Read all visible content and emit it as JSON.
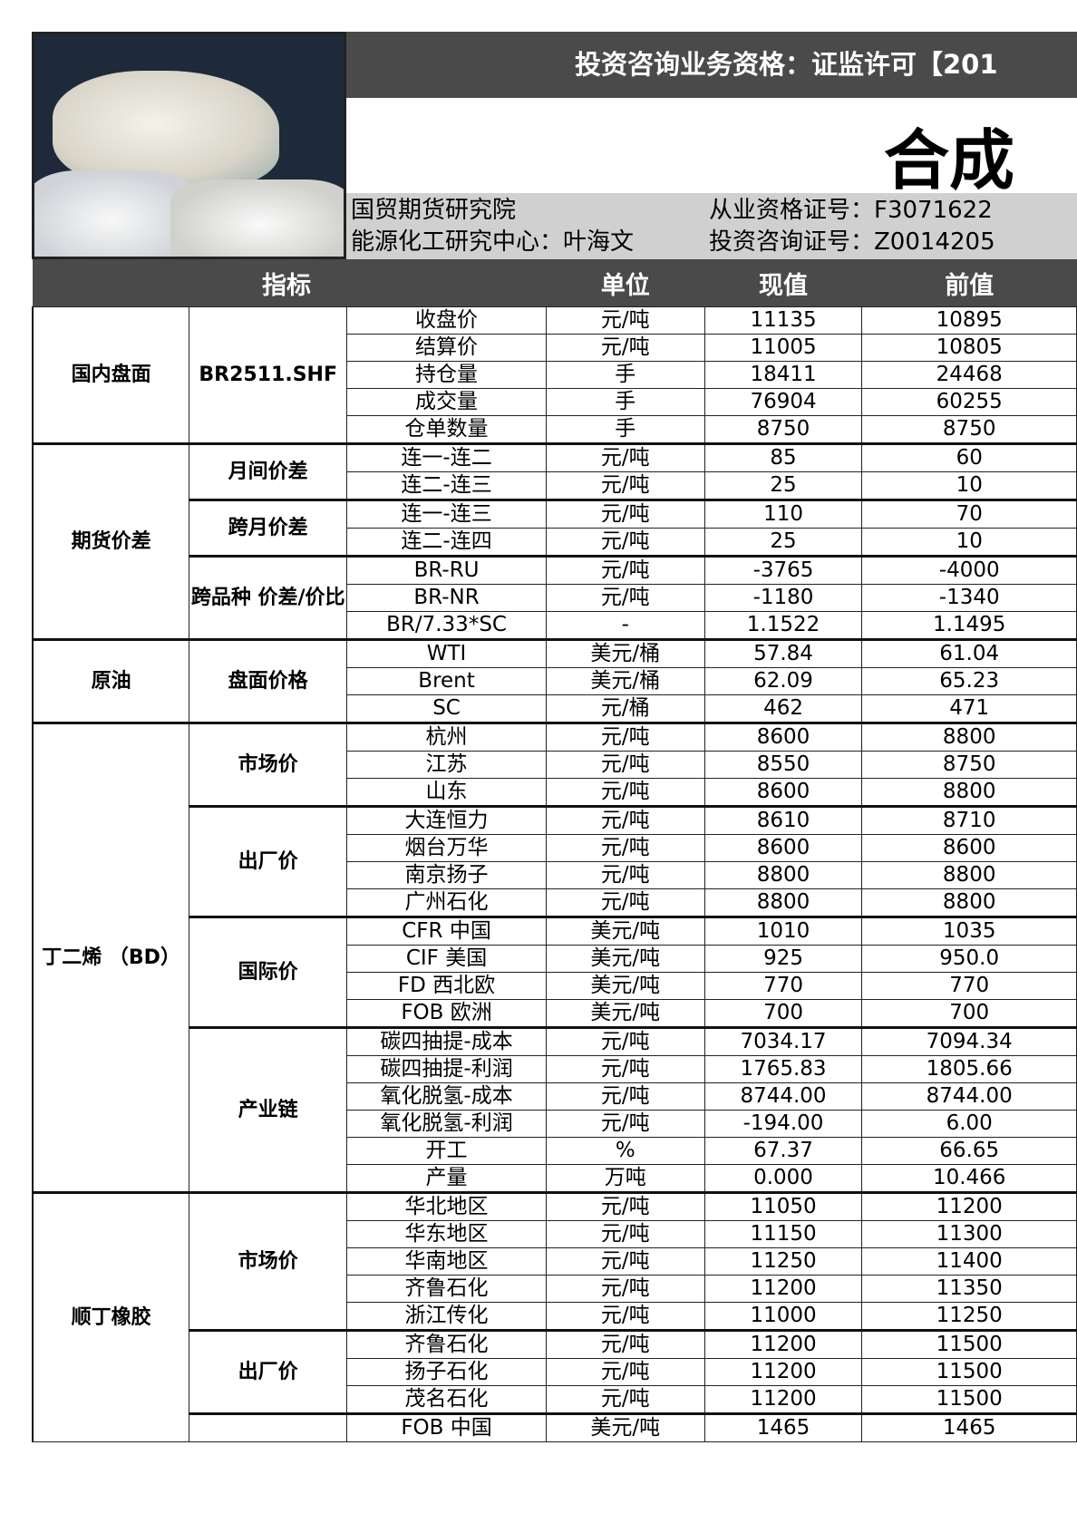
{
  "header": {
    "license": "投资咨询业务资格：证监许可【201",
    "title": "合成",
    "institute": "国贸期货研究院",
    "center": "能源化工研究中心：叶海文",
    "qual_no": "从业资格证号：F3071622",
    "invest_no": "投资咨询证号：Z0014205"
  },
  "columns": [
    "指标",
    "单位",
    "现值",
    "前值"
  ],
  "groups": [
    {
      "name": "国内盘面",
      "subgroups": [
        {
          "name": "BR2511.SHF",
          "rows": [
            [
              "收盘价",
              "元/吨",
              "11135",
              "10895"
            ],
            [
              "结算价",
              "元/吨",
              "11005",
              "10805"
            ],
            [
              "持仓量",
              "手",
              "18411",
              "24468"
            ],
            [
              "成交量",
              "手",
              "76904",
              "60255"
            ],
            [
              "仓单数量",
              "手",
              "8750",
              "8750"
            ]
          ]
        }
      ]
    },
    {
      "name": "期货价差",
      "subgroups": [
        {
          "name": "月间价差",
          "rows": [
            [
              "连一-连二",
              "元/吨",
              "85",
              "60"
            ],
            [
              "连二-连三",
              "元/吨",
              "25",
              "10"
            ]
          ]
        },
        {
          "name": "跨月价差",
          "rows": [
            [
              "连一-连三",
              "元/吨",
              "110",
              "70"
            ],
            [
              "连二-连四",
              "元/吨",
              "25",
              "10"
            ]
          ]
        },
        {
          "name": "跨品种 价差/价比",
          "rows": [
            [
              "BR-RU",
              "元/吨",
              "-3765",
              "-4000"
            ],
            [
              "BR-NR",
              "元/吨",
              "-1180",
              "-1340"
            ],
            [
              "BR/7.33*SC",
              "-",
              "1.1522",
              "1.1495"
            ]
          ]
        }
      ]
    },
    {
      "name": "原油",
      "subgroups": [
        {
          "name": "盘面价格",
          "rows": [
            [
              "WTI",
              "美元/桶",
              "57.84",
              "61.04"
            ],
            [
              "Brent",
              "美元/桶",
              "62.09",
              "65.23"
            ],
            [
              "SC",
              "元/桶",
              "462",
              "471"
            ]
          ]
        }
      ]
    },
    {
      "name": "丁二烯 （BD）",
      "subgroups": [
        {
          "name": "市场价",
          "rows": [
            [
              "杭州",
              "元/吨",
              "8600",
              "8800"
            ],
            [
              "江苏",
              "元/吨",
              "8550",
              "8750"
            ],
            [
              "山东",
              "元/吨",
              "8600",
              "8800"
            ]
          ]
        },
        {
          "name": "出厂价",
          "rows": [
            [
              "大连恒力",
              "元/吨",
              "8610",
              "8710"
            ],
            [
              "烟台万华",
              "元/吨",
              "8600",
              "8600"
            ],
            [
              "南京扬子",
              "元/吨",
              "8800",
              "8800"
            ],
            [
              "广州石化",
              "元/吨",
              "8800",
              "8800"
            ]
          ]
        },
        {
          "name": "国际价",
          "rows": [
            [
              "CFR 中国",
              "美元/吨",
              "1010",
              "1035"
            ],
            [
              "CIF 美国",
              "美元/吨",
              "925",
              "950.0"
            ],
            [
              "FD 西北欧",
              "美元/吨",
              "770",
              "770"
            ],
            [
              "FOB 欧洲",
              "美元/吨",
              "700",
              "700"
            ]
          ]
        },
        {
          "name": "产业链",
          "rows": [
            [
              "碳四抽提-成本",
              "元/吨",
              "7034.17",
              "7094.34"
            ],
            [
              "碳四抽提-利润",
              "元/吨",
              "1765.83",
              "1805.66"
            ],
            [
              "氧化脱氢-成本",
              "元/吨",
              "8744.00",
              "8744.00"
            ],
            [
              "氧化脱氢-利润",
              "元/吨",
              "-194.00",
              "6.00"
            ],
            [
              "开工",
              "%",
              "67.37",
              "66.65"
            ],
            [
              "产量",
              "万吨",
              "0.000",
              "10.466"
            ]
          ]
        }
      ]
    },
    {
      "name": "顺丁橡胶",
      "subgroups": [
        {
          "name": "市场价",
          "rows": [
            [
              "华北地区",
              "元/吨",
              "11050",
              "11200"
            ],
            [
              "华东地区",
              "元/吨",
              "11150",
              "11300"
            ],
            [
              "华南地区",
              "元/吨",
              "11250",
              "11400"
            ],
            [
              "齐鲁石化",
              "元/吨",
              "11200",
              "11350"
            ],
            [
              "浙江传化",
              "元/吨",
              "11000",
              "11250"
            ]
          ]
        },
        {
          "name": "出厂价",
          "rows": [
            [
              "齐鲁石化",
              "元/吨",
              "11200",
              "11500"
            ],
            [
              "扬子石化",
              "元/吨",
              "11200",
              "11500"
            ],
            [
              "茂名石化",
              "元/吨",
              "11200",
              "11500"
            ]
          ]
        },
        {
          "name": "",
          "rows": [
            [
              "FOB 中国",
              "美元/吨",
              "1465",
              "1465"
            ]
          ]
        }
      ]
    }
  ]
}
